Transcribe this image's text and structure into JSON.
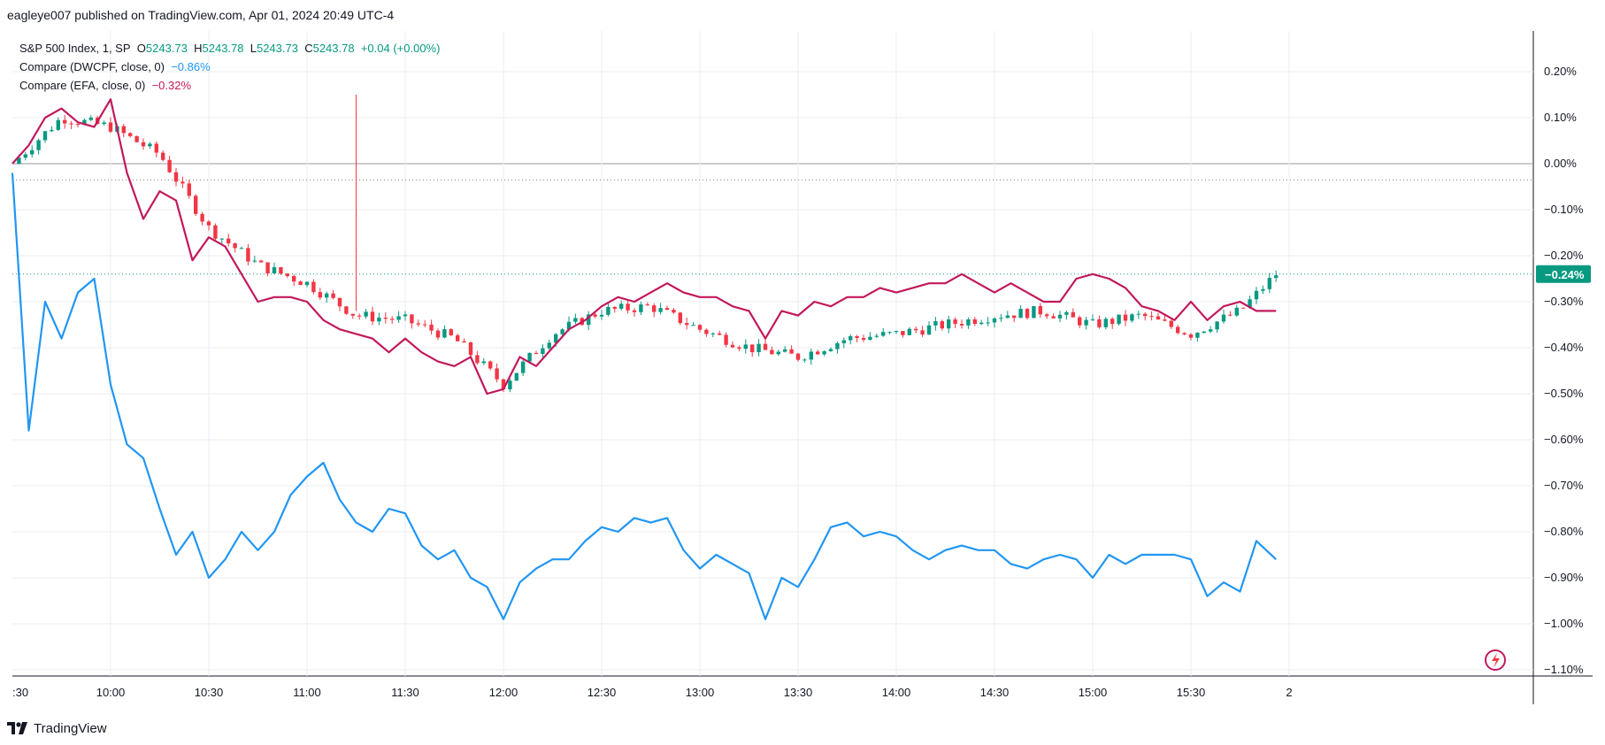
{
  "header": {
    "published_text": "eagleye007 published on TradingView.com, Apr 01, 2024 20:49 UTC-4"
  },
  "legend": {
    "main": {
      "symbol": "S&P 500 Index, 1, SP",
      "o_label": "O",
      "o_value": "5243.73",
      "h_label": "H",
      "h_value": "5243.78",
      "l_label": "L",
      "l_value": "5243.73",
      "c_label": "C",
      "c_value": "5243.78",
      "change": "+0.04 (+0.00%)"
    },
    "compare1": {
      "label": "Compare (DWCPF, close, 0)",
      "value": "−0.86%"
    },
    "compare2": {
      "label": "Compare (EFA, close, 0)",
      "value": "−0.32%"
    }
  },
  "price_axis": {
    "ticks": [
      "0.20%",
      "0.10%",
      "0.00%",
      "−0.10%",
      "−0.20%",
      "−0.30%",
      "−0.40%",
      "−0.50%",
      "−0.60%",
      "−0.70%",
      "−0.80%",
      "−0.90%",
      "−1.00%",
      "−1.10%"
    ],
    "last_value_badge": "−0.24%"
  },
  "time_axis": {
    "ticks": [
      ":30",
      "10:00",
      "10:30",
      "11:00",
      "11:30",
      "12:00",
      "12:30",
      "13:00",
      "13:30",
      "14:00",
      "14:30",
      "15:00",
      "15:30",
      "2"
    ]
  },
  "footer": {
    "brand": "TradingView"
  },
  "colors": {
    "up": "#089981",
    "down": "#f23645",
    "dwcpf": "#2196f3",
    "efa": "#c2185b",
    "grid": "#e8ecf2",
    "badge": "#089981"
  },
  "chart_data": {
    "type": "line",
    "title": "S&P 500 Index, 1, SP",
    "x_start": "09:30",
    "x_end": "15:56",
    "ylim": [
      -1.12,
      0.29
    ],
    "grid": true,
    "y_unit": "%",
    "series": [
      {
        "name": "S&P 500 Index",
        "render": "candles",
        "color": "#089981",
        "x": [
          "09:30",
          "09:45",
          "10:00",
          "10:15",
          "10:30",
          "10:45",
          "11:00",
          "11:15",
          "11:30",
          "11:45",
          "12:00",
          "12:15",
          "12:30",
          "12:45",
          "13:00",
          "13:15",
          "13:30",
          "13:45",
          "14:00",
          "14:15",
          "14:30",
          "14:45",
          "15:00",
          "15:15",
          "15:30",
          "15:45",
          "15:56"
        ],
        "values": [
          0.0,
          0.1,
          0.08,
          0.02,
          -0.14,
          -0.22,
          -0.26,
          -0.33,
          -0.34,
          -0.38,
          -0.48,
          -0.37,
          -0.32,
          -0.31,
          -0.36,
          -0.4,
          -0.42,
          -0.38,
          -0.37,
          -0.35,
          -0.33,
          -0.32,
          -0.35,
          -0.33,
          -0.37,
          -0.32,
          -0.24
        ]
      },
      {
        "name": "DWCPF",
        "render": "line",
        "color": "#2196f3",
        "x": [
          "09:30",
          "09:35",
          "09:40",
          "09:45",
          "09:50",
          "09:55",
          "10:00",
          "10:05",
          "10:10",
          "10:15",
          "10:20",
          "10:25",
          "10:30",
          "10:35",
          "10:40",
          "10:45",
          "10:50",
          "10:55",
          "11:00",
          "11:05",
          "11:10",
          "11:15",
          "11:20",
          "11:25",
          "11:30",
          "11:35",
          "11:40",
          "11:45",
          "11:50",
          "11:55",
          "12:00",
          "12:05",
          "12:10",
          "12:15",
          "12:20",
          "12:25",
          "12:30",
          "12:35",
          "12:40",
          "12:45",
          "12:50",
          "12:55",
          "13:00",
          "13:05",
          "13:10",
          "13:15",
          "13:20",
          "13:25",
          "13:30",
          "13:35",
          "13:40",
          "13:45",
          "13:50",
          "13:55",
          "14:00",
          "14:05",
          "14:10",
          "14:15",
          "14:20",
          "14:25",
          "14:30",
          "14:35",
          "14:40",
          "14:45",
          "14:50",
          "14:55",
          "15:00",
          "15:05",
          "15:10",
          "15:15",
          "15:20",
          "15:25",
          "15:30",
          "15:35",
          "15:40",
          "15:45",
          "15:50",
          "15:56"
        ],
        "values": [
          -0.02,
          -0.58,
          -0.3,
          -0.38,
          -0.28,
          -0.25,
          -0.48,
          -0.61,
          -0.64,
          -0.75,
          -0.85,
          -0.8,
          -0.9,
          -0.86,
          -0.8,
          -0.84,
          -0.8,
          -0.72,
          -0.68,
          -0.65,
          -0.73,
          -0.78,
          -0.8,
          -0.75,
          -0.76,
          -0.83,
          -0.86,
          -0.84,
          -0.9,
          -0.92,
          -0.99,
          -0.91,
          -0.88,
          -0.86,
          -0.86,
          -0.82,
          -0.79,
          -0.8,
          -0.77,
          -0.78,
          -0.77,
          -0.84,
          -0.88,
          -0.85,
          -0.87,
          -0.89,
          -0.99,
          -0.9,
          -0.92,
          -0.86,
          -0.79,
          -0.78,
          -0.81,
          -0.8,
          -0.81,
          -0.84,
          -0.86,
          -0.84,
          -0.83,
          -0.84,
          -0.84,
          -0.87,
          -0.88,
          -0.86,
          -0.85,
          -0.86,
          -0.9,
          -0.85,
          -0.87,
          -0.85,
          -0.85,
          -0.85,
          -0.86,
          -0.94,
          -0.91,
          -0.93,
          -0.82,
          -0.86
        ]
      },
      {
        "name": "EFA",
        "render": "line",
        "color": "#c2185b",
        "x": [
          "09:30",
          "09:35",
          "09:40",
          "09:45",
          "09:50",
          "09:55",
          "10:00",
          "10:05",
          "10:10",
          "10:15",
          "10:20",
          "10:25",
          "10:30",
          "10:35",
          "10:40",
          "10:45",
          "10:50",
          "10:55",
          "11:00",
          "11:05",
          "11:10",
          "11:15",
          "11:20",
          "11:25",
          "11:30",
          "11:35",
          "11:40",
          "11:45",
          "11:50",
          "11:55",
          "12:00",
          "12:05",
          "12:10",
          "12:15",
          "12:20",
          "12:25",
          "12:30",
          "12:35",
          "12:40",
          "12:45",
          "12:50",
          "12:55",
          "13:00",
          "13:05",
          "13:10",
          "13:15",
          "13:20",
          "13:25",
          "13:30",
          "13:35",
          "13:40",
          "13:45",
          "13:50",
          "13:55",
          "14:00",
          "14:05",
          "14:10",
          "14:15",
          "14:20",
          "14:25",
          "14:30",
          "14:35",
          "14:40",
          "14:45",
          "14:50",
          "14:55",
          "15:00",
          "15:05",
          "15:10",
          "15:15",
          "15:20",
          "15:25",
          "15:30",
          "15:35",
          "15:40",
          "15:45",
          "15:50",
          "15:56"
        ],
        "values": [
          0.0,
          0.04,
          0.1,
          0.12,
          0.09,
          0.08,
          0.14,
          -0.02,
          -0.12,
          -0.06,
          -0.08,
          -0.21,
          -0.16,
          -0.18,
          -0.24,
          -0.3,
          -0.29,
          -0.29,
          -0.3,
          -0.34,
          -0.36,
          -0.37,
          -0.38,
          -0.41,
          -0.38,
          -0.41,
          -0.43,
          -0.44,
          -0.42,
          -0.5,
          -0.49,
          -0.42,
          -0.44,
          -0.4,
          -0.36,
          -0.34,
          -0.31,
          -0.29,
          -0.3,
          -0.28,
          -0.26,
          -0.28,
          -0.29,
          -0.29,
          -0.31,
          -0.32,
          -0.38,
          -0.32,
          -0.33,
          -0.3,
          -0.31,
          -0.29,
          -0.29,
          -0.27,
          -0.28,
          -0.27,
          -0.26,
          -0.26,
          -0.24,
          -0.26,
          -0.28,
          -0.26,
          -0.28,
          -0.3,
          -0.3,
          -0.25,
          -0.24,
          -0.25,
          -0.27,
          -0.31,
          -0.32,
          -0.34,
          -0.3,
          -0.34,
          -0.31,
          -0.3,
          -0.32,
          -0.32
        ]
      }
    ]
  }
}
